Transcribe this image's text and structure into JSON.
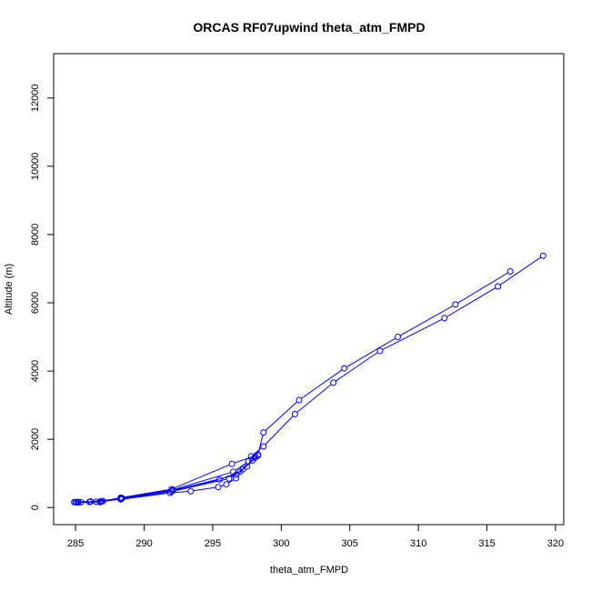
{
  "chart_data": {
    "type": "line",
    "title": "ORCAS RF07upwind theta_atm_FMPD",
    "xlabel": "theta_atm_FMPD",
    "ylabel": "Altitude (m)",
    "xlim": [
      283.4,
      320.6
    ],
    "ylim": [
      -500,
      13300
    ],
    "xticks": [
      285,
      290,
      295,
      300,
      305,
      310,
      315,
      320
    ],
    "yticks": [
      0,
      2000,
      4000,
      6000,
      8000,
      10000,
      12000
    ],
    "grid": false,
    "line_color": "#0000ff",
    "marker": "open-circle",
    "series": [
      {
        "x": [
          285.0,
          286.5,
          288.3,
          291.9,
          293.4,
          295.4,
          296.0,
          296.7,
          297.2,
          297.9
        ],
        "y": [
          160,
          170,
          240,
          430,
          480,
          600,
          680,
          860,
          1120,
          1380
        ]
      },
      {
        "x": [
          285.4,
          286.8,
          288.3,
          292.0,
          296.2,
          297.5,
          298.1
        ],
        "y": [
          160,
          175,
          265,
          470,
          850,
          1200,
          1500
        ]
      },
      {
        "x": [
          285.2,
          286.1,
          288.3,
          292.0,
          295.5,
          297.0,
          298.3
        ],
        "y": [
          165,
          180,
          250,
          470,
          820,
          1050,
          1520
        ]
      },
      {
        "x": [
          284.9,
          286.0,
          287.0,
          288.3,
          292.1,
          296.7,
          298.1
        ],
        "y": [
          160,
          165,
          190,
          255,
          500,
          960,
          1460
        ]
      },
      {
        "x": [
          285.1,
          286.8,
          288.4,
          292.1,
          296.5,
          297.6
        ],
        "y": [
          150,
          160,
          275,
          520,
          1050,
          1350
        ]
      },
      {
        "x": [
          285.2,
          286.9,
          288.3,
          292.0,
          296.4,
          298.3,
          298.7,
          301.3,
          304.6,
          308.5,
          312.7,
          316.7
        ],
        "y": [
          150,
          185,
          290,
          540,
          1280,
          1550,
          2200,
          3150,
          4080,
          5000,
          5950,
          6920
        ]
      },
      {
        "x": [
          297.8,
          298.7,
          301.0,
          303.8,
          307.2,
          311.9,
          315.8,
          319.1
        ],
        "y": [
          1500,
          1790,
          2740,
          3660,
          4590,
          5550,
          6480,
          7380
        ]
      }
    ]
  }
}
